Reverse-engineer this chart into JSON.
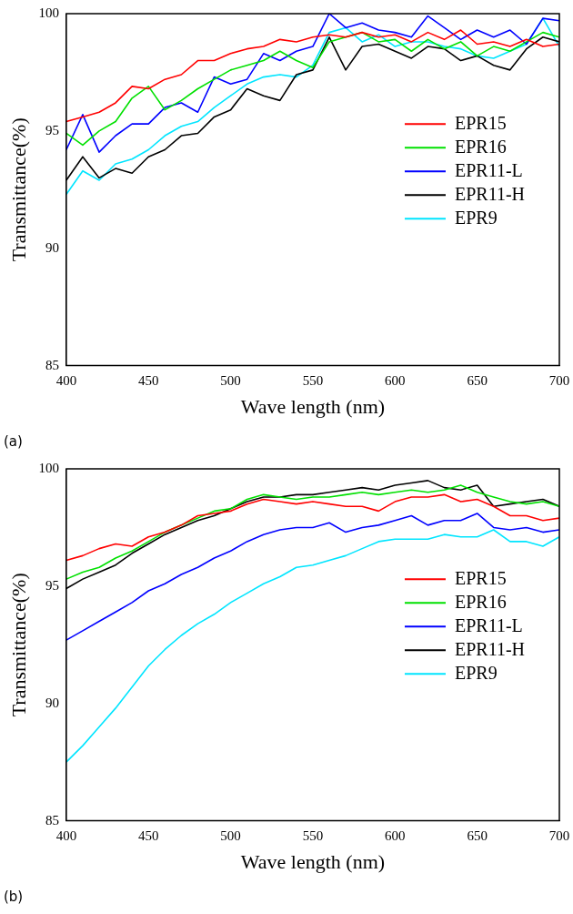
{
  "chart_data": [
    {
      "type": "line",
      "xlabel": "Wave length (nm)",
      "ylabel": "Transmittance(%)",
      "annotations": [
        "(a)"
      ],
      "xlim": [
        400,
        700
      ],
      "xticks": [
        400,
        450,
        500,
        550,
        600,
        650,
        700
      ],
      "ylim": [
        85,
        100
      ],
      "yticks": [
        85,
        90,
        95,
        100
      ],
      "grid": false,
      "legend": "right",
      "marker": "none",
      "line_style": "solid",
      "x": [
        400,
        410,
        420,
        430,
        440,
        450,
        460,
        470,
        480,
        490,
        500,
        510,
        520,
        530,
        540,
        550,
        560,
        570,
        580,
        590,
        600,
        610,
        620,
        630,
        640,
        650,
        660,
        670,
        680,
        690,
        700
      ],
      "series": [
        {
          "name": "EPR15",
          "color": "#ff0000",
          "values": [
            95.4,
            95.6,
            95.8,
            96.2,
            96.9,
            96.8,
            97.2,
            97.4,
            98.0,
            98.0,
            98.3,
            98.5,
            98.6,
            98.9,
            98.8,
            99.0,
            99.1,
            99.0,
            99.2,
            99.0,
            99.1,
            98.8,
            99.2,
            98.9,
            99.3,
            98.7,
            98.8,
            98.6,
            98.9,
            98.6,
            98.7
          ]
        },
        {
          "name": "EPR16",
          "color": "#00e000",
          "values": [
            94.9,
            94.4,
            95.0,
            95.4,
            96.4,
            96.9,
            95.9,
            96.3,
            96.8,
            97.2,
            97.6,
            97.8,
            98.0,
            98.4,
            98.0,
            97.7,
            98.8,
            99.0,
            99.2,
            98.8,
            98.9,
            98.4,
            98.9,
            98.5,
            98.8,
            98.2,
            98.6,
            98.4,
            98.8,
            99.2,
            99.0
          ]
        },
        {
          "name": "EPR11-L",
          "color": "#0000ff",
          "values": [
            94.2,
            95.7,
            94.1,
            94.8,
            95.3,
            95.3,
            96.0,
            96.2,
            95.8,
            97.3,
            97.0,
            97.2,
            98.3,
            98.0,
            98.4,
            98.6,
            100.0,
            99.4,
            99.6,
            99.3,
            99.2,
            99.0,
            99.9,
            99.4,
            98.9,
            99.3,
            99.0,
            99.3,
            98.7,
            99.8,
            99.7
          ]
        },
        {
          "name": "EPR11-H",
          "color": "#000000",
          "values": [
            92.9,
            93.9,
            93.0,
            93.4,
            93.2,
            93.9,
            94.2,
            94.8,
            94.9,
            95.6,
            95.9,
            96.8,
            96.5,
            96.3,
            97.4,
            97.6,
            99.0,
            97.6,
            98.6,
            98.7,
            98.4,
            98.1,
            98.6,
            98.5,
            98.0,
            98.2,
            97.8,
            97.6,
            98.5,
            99.0,
            98.8
          ]
        },
        {
          "name": "EPR9",
          "color": "#00e5ff",
          "values": [
            92.3,
            93.3,
            92.9,
            93.6,
            93.8,
            94.2,
            94.8,
            95.2,
            95.4,
            96.0,
            96.5,
            97.0,
            97.3,
            97.4,
            97.3,
            97.8,
            99.2,
            99.4,
            98.8,
            99.1,
            98.6,
            98.8,
            98.8,
            98.6,
            98.5,
            98.2,
            98.1,
            98.4,
            98.7,
            99.8,
            98.6
          ]
        }
      ]
    },
    {
      "type": "line",
      "xlabel": "Wave length (nm)",
      "ylabel": "Transmittance(%)",
      "annotations": [
        "(b)"
      ],
      "xlim": [
        400,
        700
      ],
      "xticks": [
        400,
        450,
        500,
        550,
        600,
        650,
        700
      ],
      "ylim": [
        85,
        100
      ],
      "yticks": [
        85,
        90,
        95,
        100
      ],
      "grid": false,
      "legend": "right",
      "marker": "none",
      "line_style": "solid",
      "x": [
        400,
        410,
        420,
        430,
        440,
        450,
        460,
        470,
        480,
        490,
        500,
        510,
        520,
        530,
        540,
        550,
        560,
        570,
        580,
        590,
        600,
        610,
        620,
        630,
        640,
        650,
        660,
        670,
        680,
        690,
        700
      ],
      "series": [
        {
          "name": "EPR15",
          "color": "#ff0000",
          "values": [
            96.1,
            96.3,
            96.6,
            96.8,
            96.7,
            97.1,
            97.3,
            97.6,
            98.0,
            98.1,
            98.2,
            98.5,
            98.7,
            98.6,
            98.5,
            98.6,
            98.5,
            98.4,
            98.4,
            98.2,
            98.6,
            98.8,
            98.8,
            98.9,
            98.6,
            98.7,
            98.4,
            98.0,
            98.0,
            97.8,
            97.9
          ]
        },
        {
          "name": "EPR16",
          "color": "#00e000",
          "values": [
            95.3,
            95.6,
            95.8,
            96.2,
            96.5,
            96.9,
            97.3,
            97.6,
            97.9,
            98.2,
            98.3,
            98.7,
            98.9,
            98.8,
            98.7,
            98.8,
            98.8,
            98.9,
            99.0,
            98.9,
            99.0,
            99.1,
            99.0,
            99.1,
            99.3,
            99.0,
            98.8,
            98.6,
            98.5,
            98.6,
            98.4
          ]
        },
        {
          "name": "EPR11-L",
          "color": "#0000ff",
          "values": [
            92.7,
            93.1,
            93.5,
            93.9,
            94.3,
            94.8,
            95.1,
            95.5,
            95.8,
            96.2,
            96.5,
            96.9,
            97.2,
            97.4,
            97.5,
            97.5,
            97.7,
            97.3,
            97.5,
            97.6,
            97.8,
            98.0,
            97.6,
            97.8,
            97.8,
            98.1,
            97.5,
            97.4,
            97.5,
            97.3,
            97.4
          ]
        },
        {
          "name": "EPR11-H",
          "color": "#000000",
          "values": [
            94.9,
            95.3,
            95.6,
            95.9,
            96.4,
            96.8,
            97.2,
            97.5,
            97.8,
            98.0,
            98.3,
            98.6,
            98.8,
            98.8,
            98.9,
            98.9,
            99.0,
            99.1,
            99.2,
            99.1,
            99.3,
            99.4,
            99.5,
            99.2,
            99.1,
            99.3,
            98.4,
            98.5,
            98.6,
            98.7,
            98.4
          ]
        },
        {
          "name": "EPR9",
          "color": "#00e5ff",
          "values": [
            87.5,
            88.2,
            89.0,
            89.8,
            90.7,
            91.6,
            92.3,
            92.9,
            93.4,
            93.8,
            94.3,
            94.7,
            95.1,
            95.4,
            95.8,
            95.9,
            96.1,
            96.3,
            96.6,
            96.9,
            97.0,
            97.0,
            97.0,
            97.2,
            97.1,
            97.1,
            97.4,
            96.9,
            96.9,
            96.7,
            97.1
          ]
        }
      ]
    }
  ]
}
